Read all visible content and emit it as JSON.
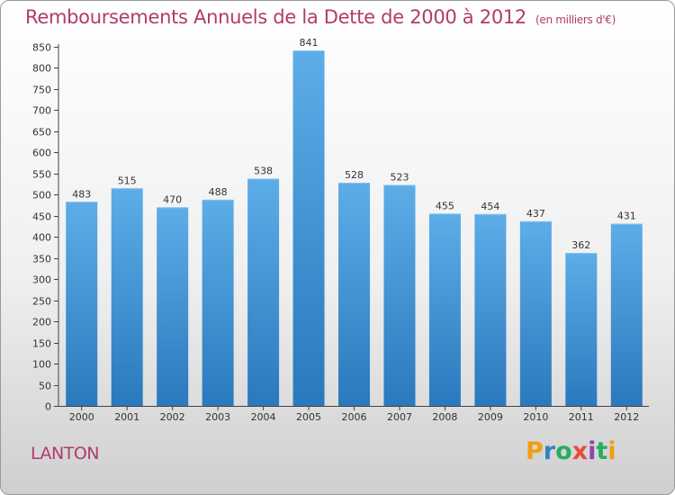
{
  "title": {
    "main": "Remboursements Annuels de la Dette de 2000 à 2012",
    "subtitle": "(en milliers d'€)"
  },
  "place_name": "LANTON",
  "logo": {
    "text": "Proxiti",
    "letters": [
      "P",
      "r",
      "o",
      "x",
      "i",
      "t",
      "i"
    ],
    "letter_colors": [
      "#f39c12",
      "#2e86c1",
      "#27ae60",
      "#e74c3c",
      "#8e44ad",
      "#27ae60",
      "#f39c12"
    ]
  },
  "colors": {
    "accent_text": "#b23a6e",
    "bar_top": "#5dade8",
    "bar_bottom": "#2a79bd"
  },
  "chart_data": {
    "type": "bar",
    "categories": [
      "2000",
      "2001",
      "2002",
      "2003",
      "2004",
      "2005",
      "2006",
      "2007",
      "2008",
      "2009",
      "2010",
      "2011",
      "2012"
    ],
    "values": [
      483,
      515,
      470,
      488,
      538,
      841,
      528,
      523,
      455,
      454,
      437,
      362,
      431
    ],
    "data_labels": [
      "483",
      "515",
      "470",
      "488",
      "538",
      "841",
      "528",
      "523",
      "455",
      "454",
      "437",
      "362",
      "431"
    ],
    "title": "Remboursements Annuels de la Dette de 2000 à 2012",
    "subtitle": "(en milliers d'€)",
    "xlabel": "",
    "ylabel": "",
    "ylim": [
      0,
      850
    ],
    "yticks": [
      0,
      50,
      100,
      150,
      200,
      250,
      300,
      350,
      400,
      450,
      500,
      550,
      600,
      650,
      700,
      750,
      800,
      850
    ],
    "grid": false,
    "legend": "none"
  }
}
